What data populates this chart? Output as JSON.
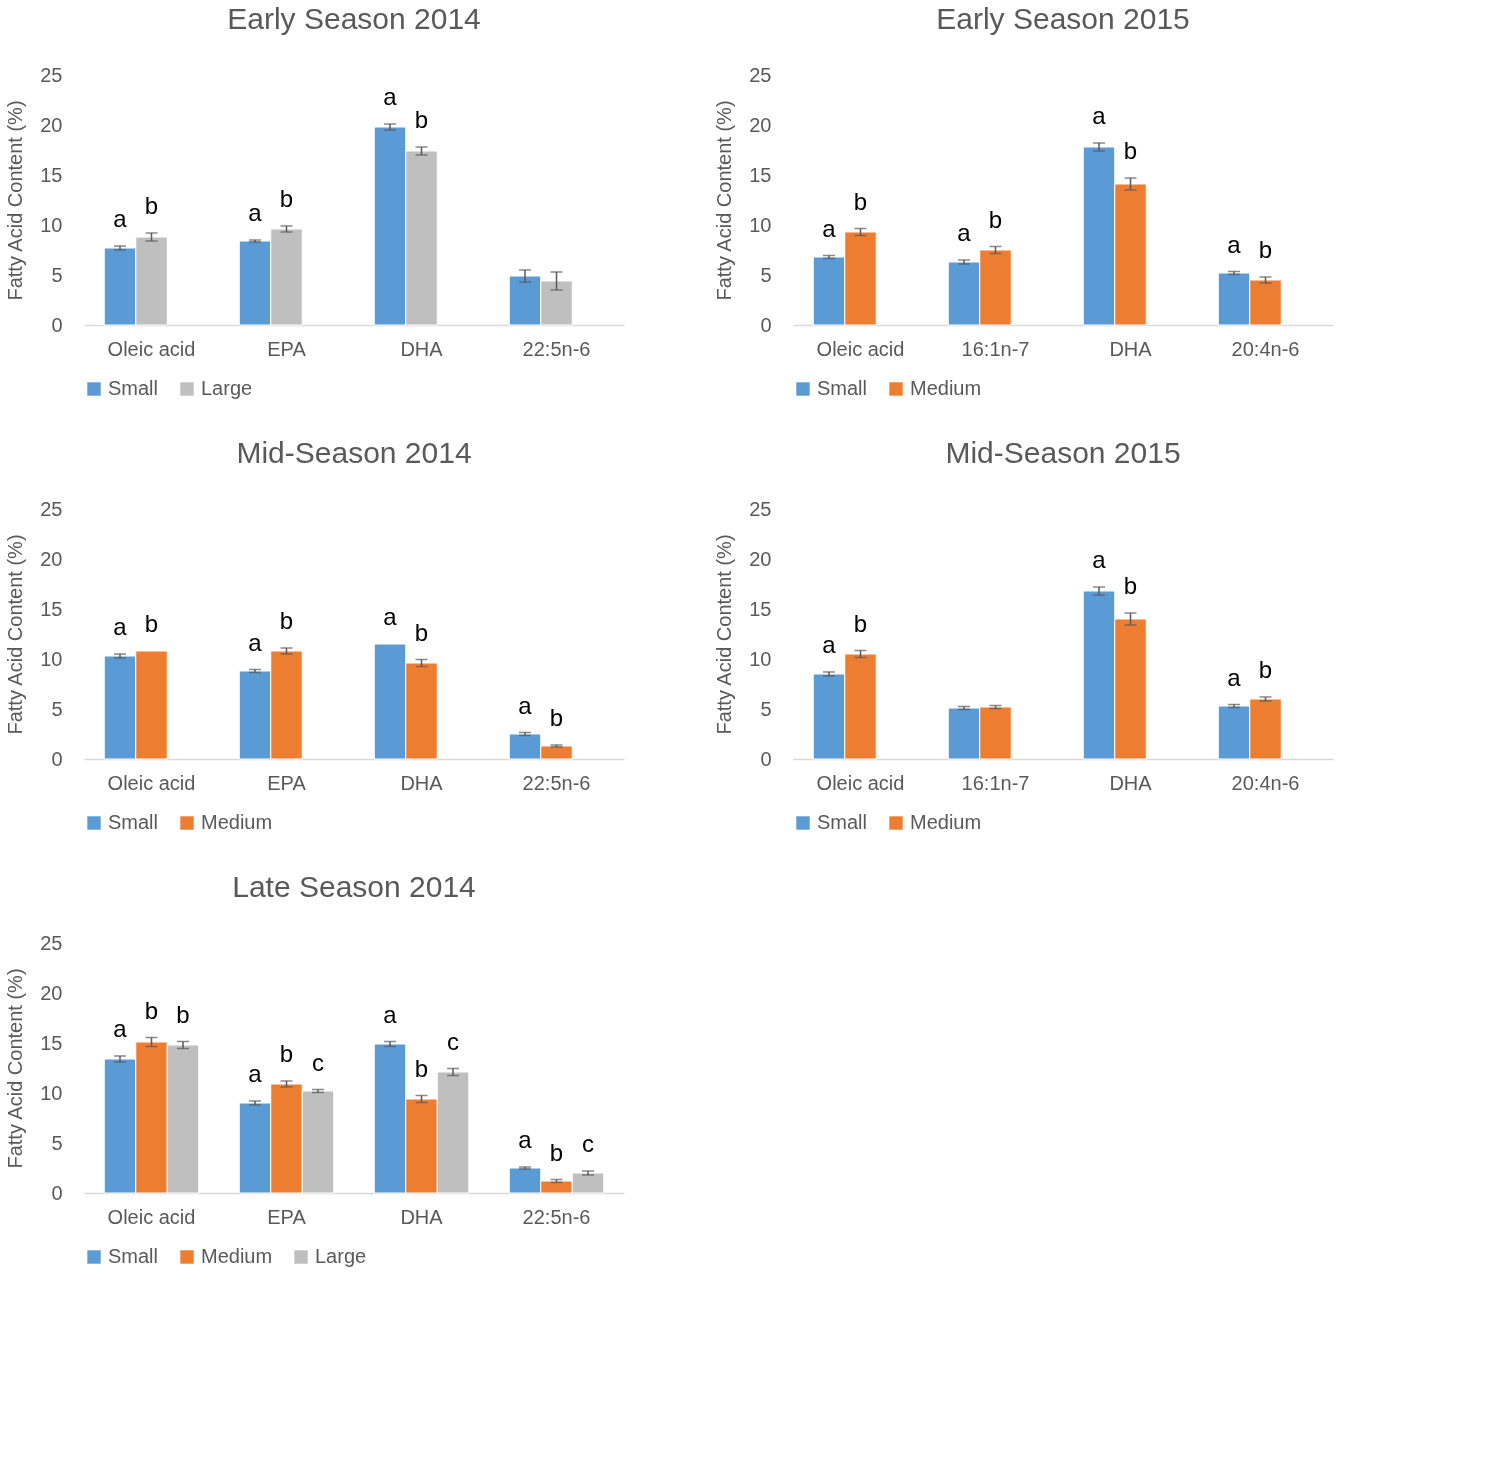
{
  "chart_data": [
    {
      "type": "bar",
      "title": "Early Season 2014",
      "ylabel": "Fatty Acid Content (%)",
      "categories": [
        "Oleic acid",
        "EPA",
        "DHA",
        "22:5n-6"
      ],
      "ylim": [
        0,
        25
      ],
      "yticks": [
        0,
        5,
        10,
        15,
        20,
        25
      ],
      "grid": false,
      "legend": "bottom",
      "series": [
        {
          "name": "Small",
          "color": "#5b9bd5",
          "values": [
            7.7,
            8.4,
            19.8,
            4.9
          ],
          "errors": [
            0.2,
            0.1,
            0.3,
            0.6
          ],
          "value_labels": [
            "a",
            "a",
            "a",
            null
          ]
        },
        {
          "name": "Large",
          "color": "#bfbfbf",
          "values": [
            8.8,
            9.6,
            17.4,
            4.4
          ],
          "errors": [
            0.4,
            0.3,
            0.4,
            0.9
          ],
          "value_labels": [
            "b",
            "b",
            "b",
            null
          ]
        }
      ]
    },
    {
      "type": "bar",
      "title": "Early Season 2015",
      "ylabel": "Fatty Acid Content (%)",
      "categories": [
        "Oleic acid",
        "16:1n-7",
        "DHA",
        "20:4n-6"
      ],
      "ylim": [
        0,
        25
      ],
      "yticks": [
        0,
        5,
        10,
        15,
        20,
        25
      ],
      "grid": false,
      "legend": "bottom",
      "series": [
        {
          "name": "Small",
          "color": "#5b9bd5",
          "values": [
            6.8,
            6.3,
            17.8,
            5.2
          ],
          "errors": [
            0.15,
            0.2,
            0.4,
            0.15
          ],
          "value_labels": [
            "a",
            "a",
            "a",
            "a"
          ]
        },
        {
          "name": "Medium",
          "color": "#ed7d31",
          "values": [
            9.3,
            7.5,
            14.1,
            4.5
          ],
          "errors": [
            0.35,
            0.35,
            0.6,
            0.3
          ],
          "value_labels": [
            "b",
            "b",
            "b",
            "b"
          ]
        }
      ]
    },
    {
      "type": "bar",
      "title": "Mid-Season 2014",
      "ylabel": "Fatty Acid Content (%)",
      "categories": [
        "Oleic acid",
        "EPA",
        "DHA",
        "22:5n-6"
      ],
      "ylim": [
        0,
        25
      ],
      "yticks": [
        0,
        5,
        10,
        15,
        20,
        25
      ],
      "grid": false,
      "legend": "bottom",
      "series": [
        {
          "name": "Small",
          "color": "#5b9bd5",
          "values": [
            10.3,
            8.8,
            11.5,
            2.5
          ],
          "errors": [
            0.2,
            0.15,
            null,
            0.15
          ],
          "value_labels": [
            "a",
            "a",
            "a",
            "a"
          ]
        },
        {
          "name": "Medium",
          "color": "#ed7d31",
          "values": [
            10.8,
            10.8,
            9.6,
            1.3
          ],
          "errors": [
            null,
            0.3,
            0.35,
            0.1
          ],
          "value_labels": [
            "b",
            "b",
            "b",
            "b"
          ]
        }
      ]
    },
    {
      "type": "bar",
      "title": "Mid-Season 2015",
      "ylabel": "Fatty Acid Content (%)",
      "categories": [
        "Oleic acid",
        "16:1n-7",
        "DHA",
        "20:4n-6"
      ],
      "ylim": [
        0,
        25
      ],
      "yticks": [
        0,
        5,
        10,
        15,
        20,
        25
      ],
      "grid": false,
      "legend": "bottom",
      "series": [
        {
          "name": "Small",
          "color": "#5b9bd5",
          "values": [
            8.5,
            5.1,
            16.8,
            5.3
          ],
          "errors": [
            0.2,
            0.15,
            0.4,
            0.15
          ],
          "value_labels": [
            "a",
            null,
            "a",
            "a"
          ]
        },
        {
          "name": "Medium",
          "color": "#ed7d31",
          "values": [
            10.5,
            5.2,
            14.0,
            6.0
          ],
          "errors": [
            0.35,
            0.15,
            0.6,
            0.2
          ],
          "value_labels": [
            "b",
            null,
            "b",
            "b"
          ]
        }
      ]
    },
    {
      "type": "bar",
      "title": "Late Season 2014",
      "ylabel": "Fatty Acid Content (%)",
      "categories": [
        "Oleic acid",
        "EPA",
        "DHA",
        "22:5n-6"
      ],
      "ylim": [
        0,
        25
      ],
      "yticks": [
        0,
        5,
        10,
        15,
        20,
        25
      ],
      "grid": false,
      "legend": "bottom",
      "series": [
        {
          "name": "Small",
          "color": "#5b9bd5",
          "values": [
            13.4,
            9.0,
            14.9,
            2.5
          ],
          "errors": [
            0.3,
            0.2,
            0.25,
            0.1
          ],
          "value_labels": [
            "a",
            "a",
            "a",
            "a"
          ]
        },
        {
          "name": "Medium",
          "color": "#ed7d31",
          "values": [
            15.1,
            10.9,
            9.4,
            1.2
          ],
          "errors": [
            0.45,
            0.3,
            0.35,
            0.15
          ],
          "value_labels": [
            "b",
            "b",
            "b",
            "b"
          ]
        },
        {
          "name": "Large",
          "color": "#bfbfbf",
          "values": [
            14.8,
            10.2,
            12.1,
            2.0
          ],
          "errors": [
            0.35,
            0.15,
            0.35,
            0.2
          ],
          "value_labels": [
            "b",
            "c",
            "c",
            "c"
          ]
        }
      ]
    }
  ]
}
